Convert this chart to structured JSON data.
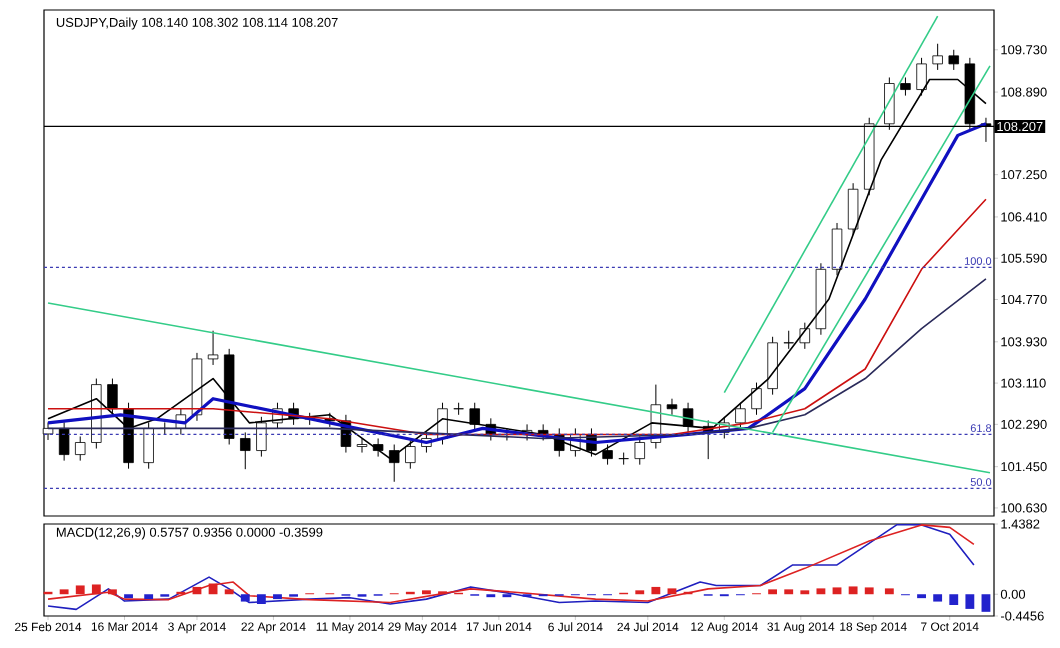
{
  "chart_data": [
    {
      "type": "candlestick",
      "title": "USDJPY,Daily 108.140 108.302 108.114 108.207",
      "x": [
        "2014-02-25",
        "2014-03-01",
        "2014-03-05",
        "2014-03-09",
        "2014-03-13",
        "2014-03-17",
        "2014-03-22",
        "2014-03-26",
        "2014-03-30",
        "2014-04-03",
        "2014-04-07",
        "2014-04-11",
        "2014-04-15",
        "2014-04-19",
        "2014-04-23",
        "2014-04-27",
        "2014-05-01",
        "2014-05-06",
        "2014-05-10",
        "2014-05-14",
        "2014-05-18",
        "2014-05-22",
        "2014-05-26",
        "2014-05-30",
        "2014-06-03",
        "2014-06-07",
        "2014-06-11",
        "2014-06-15",
        "2014-06-19",
        "2014-06-24",
        "2014-06-28",
        "2014-07-02",
        "2014-07-06",
        "2014-07-10",
        "2014-07-14",
        "2014-07-18",
        "2014-07-22",
        "2014-07-26",
        "2014-07-30",
        "2014-08-03",
        "2014-08-08",
        "2014-08-12",
        "2014-08-16",
        "2014-08-20",
        "2014-08-24",
        "2014-08-28",
        "2014-09-01",
        "2014-09-05",
        "2014-09-09",
        "2014-09-13",
        "2014-09-17",
        "2014-09-22",
        "2014-09-26",
        "2014-09-30",
        "2014-10-04",
        "2014-10-08",
        "2014-10-12",
        "2014-10-16"
      ],
      "ohlc": [
        [
          102.1,
          102.33,
          101.98,
          102.21
        ],
        [
          102.21,
          102.33,
          101.57,
          101.69
        ],
        [
          101.69,
          102.05,
          101.57,
          101.93
        ],
        [
          101.93,
          103.2,
          101.81,
          103.08
        ],
        [
          103.08,
          103.2,
          102.48,
          102.6
        ],
        [
          102.6,
          102.72,
          101.41,
          101.53
        ],
        [
          101.53,
          102.33,
          101.41,
          102.21
        ],
        [
          102.21,
          102.33,
          102.09,
          102.21
        ],
        [
          102.21,
          102.6,
          102.09,
          102.48
        ],
        [
          102.48,
          103.71,
          102.36,
          103.59
        ],
        [
          103.59,
          104.15,
          103.47,
          103.67
        ],
        [
          103.67,
          103.79,
          101.89,
          102.01
        ],
        [
          102.01,
          102.13,
          101.4,
          101.77
        ],
        [
          101.77,
          102.44,
          101.65,
          102.32
        ],
        [
          102.32,
          102.72,
          102.2,
          102.6
        ],
        [
          102.6,
          102.72,
          102.28,
          102.4
        ],
        [
          102.4,
          102.52,
          102.28,
          102.4
        ],
        [
          102.4,
          102.52,
          102.24,
          102.36
        ],
        [
          102.36,
          102.48,
          101.73,
          101.85
        ],
        [
          101.85,
          102.01,
          101.73,
          101.89
        ],
        [
          101.89,
          102.01,
          101.65,
          101.77
        ],
        [
          101.77,
          101.89,
          101.15,
          101.53
        ],
        [
          101.53,
          101.97,
          101.41,
          101.85
        ],
        [
          101.85,
          102.13,
          101.73,
          102.01
        ],
        [
          102.01,
          102.72,
          101.89,
          102.6
        ],
        [
          102.6,
          102.72,
          102.48,
          102.6
        ],
        [
          102.6,
          102.72,
          102.17,
          102.29
        ],
        [
          102.29,
          102.41,
          101.97,
          102.09
        ],
        [
          102.09,
          102.21,
          101.97,
          102.09
        ],
        [
          102.09,
          102.29,
          101.97,
          102.17
        ],
        [
          102.17,
          102.29,
          101.97,
          102.09
        ],
        [
          102.09,
          102.21,
          101.65,
          101.77
        ],
        [
          101.77,
          102.21,
          101.65,
          102.09
        ],
        [
          102.09,
          102.21,
          101.65,
          101.77
        ],
        [
          101.77,
          101.89,
          101.49,
          101.61
        ],
        [
          101.61,
          101.73,
          101.49,
          101.61
        ],
        [
          101.61,
          102.05,
          101.49,
          101.93
        ],
        [
          101.93,
          103.08,
          101.81,
          102.68
        ],
        [
          102.68,
          102.8,
          102.48,
          102.6
        ],
        [
          102.6,
          102.72,
          102.13,
          102.25
        ],
        [
          102.25,
          102.37,
          101.6,
          102.13
        ],
        [
          102.13,
          102.44,
          102.01,
          102.32
        ],
        [
          102.32,
          102.72,
          102.2,
          102.6
        ],
        [
          102.6,
          103.12,
          102.48,
          103.0
        ],
        [
          103.0,
          104.03,
          102.88,
          103.91
        ],
        [
          103.91,
          104.15,
          103.79,
          103.91
        ],
        [
          103.91,
          104.31,
          103.79,
          104.19
        ],
        [
          104.19,
          105.49,
          104.07,
          105.37
        ],
        [
          105.37,
          106.29,
          105.25,
          106.17
        ],
        [
          106.17,
          107.08,
          106.05,
          106.96
        ],
        [
          106.96,
          108.38,
          106.84,
          108.26
        ],
        [
          108.26,
          109.18,
          108.14,
          109.06
        ],
        [
          109.06,
          109.18,
          108.82,
          108.94
        ],
        [
          108.94,
          109.57,
          108.82,
          109.45
        ],
        [
          109.45,
          109.85,
          109.33,
          109.61
        ],
        [
          109.61,
          109.73,
          109.33,
          109.45
        ],
        [
          109.45,
          109.57,
          108.14,
          108.26
        ],
        [
          108.26,
          108.38,
          107.9,
          108.207
        ]
      ],
      "series": [
        {
          "type": "line",
          "color": "#000000",
          "x": [
            "2014-02-25",
            "2014-03-09",
            "2014-03-17",
            "2014-03-24",
            "2014-04-07",
            "2014-04-16",
            "2014-05-06",
            "2014-05-21",
            "2014-06-03",
            "2014-06-28",
            "2014-07-11",
            "2014-07-25",
            "2014-08-09",
            "2014-08-23",
            "2014-09-07",
            "2014-09-20",
            "2014-10-02",
            "2014-10-09",
            "2014-10-16"
          ],
          "values": [
            102.4,
            102.8,
            102.21,
            102.4,
            103.2,
            102.32,
            102.48,
            101.61,
            102.4,
            102.09,
            101.69,
            102.32,
            102.21,
            103.2,
            104.78,
            107.55,
            109.14,
            109.14,
            108.66
          ]
        },
        {
          "type": "line",
          "color": "#1010c0",
          "x": [
            "2014-02-25",
            "2014-03-15",
            "2014-03-31",
            "2014-04-07",
            "2014-05-06",
            "2014-05-30",
            "2014-06-13",
            "2014-07-11",
            "2014-08-03",
            "2014-08-18",
            "2014-09-01",
            "2014-09-16",
            "2014-09-30",
            "2014-10-09",
            "2014-10-16"
          ],
          "values": [
            102.32,
            102.48,
            102.32,
            102.8,
            102.32,
            101.93,
            102.21,
            101.93,
            102.09,
            102.21,
            103.0,
            104.78,
            106.76,
            108.03,
            108.26
          ]
        },
        {
          "type": "line",
          "color": "#cc1010",
          "x": [
            "2014-02-25",
            "2014-04-07",
            "2014-05-06",
            "2014-05-30",
            "2014-06-28",
            "2014-07-30",
            "2014-08-18",
            "2014-09-01",
            "2014-09-16",
            "2014-09-30",
            "2014-10-16"
          ],
          "values": [
            102.6,
            102.6,
            102.4,
            102.09,
            102.09,
            102.09,
            102.32,
            102.6,
            103.39,
            105.37,
            106.76
          ]
        },
        {
          "type": "line",
          "color": "#2a2a5a",
          "x": [
            "2014-02-25",
            "2014-03-24",
            "2014-05-06",
            "2014-06-28",
            "2014-08-03",
            "2014-08-18",
            "2014-09-01",
            "2014-09-16",
            "2014-09-30",
            "2014-10-16"
          ],
          "values": [
            102.21,
            102.21,
            102.21,
            102.01,
            102.09,
            102.21,
            102.48,
            103.2,
            104.19,
            105.18
          ]
        },
        {
          "type": "line",
          "color": "#33cc88",
          "x": [
            "2014-02-25",
            "2014-10-17"
          ],
          "values": [
            104.7,
            101.33
          ]
        },
        {
          "type": "line",
          "color": "#33cc88",
          "x": [
            "2014-08-12",
            "2014-10-04"
          ],
          "values": [
            102.92,
            110.4
          ]
        },
        {
          "type": "line",
          "color": "#33cc88",
          "x": [
            "2014-08-24",
            "2014-10-17"
          ],
          "values": [
            102.13,
            109.41
          ]
        }
      ],
      "xlim": [
        "2014-02-24",
        "2014-10-18"
      ],
      "ylim": [
        100.47,
        110.52
      ],
      "yticks": [
        {
          "value": 100.63,
          "label": "100.630"
        },
        {
          "value": 101.45,
          "label": "101.450"
        },
        {
          "value": 102.29,
          "label": "102.290"
        },
        {
          "value": 103.11,
          "label": "103.110"
        },
        {
          "value": 103.93,
          "label": "103.930"
        },
        {
          "value": 104.77,
          "label": "104.770"
        },
        {
          "value": 105.59,
          "label": "105.590"
        },
        {
          "value": 106.41,
          "label": "106.410"
        },
        {
          "value": 107.25,
          "label": "107.250"
        },
        {
          "value": 108.89,
          "label": "108.890"
        },
        {
          "value": 109.73,
          "label": "109.730"
        }
      ],
      "ref_lines": [
        {
          "axis": "y",
          "value": 108.207,
          "label": "108.207",
          "color": "#000000",
          "line_style": "solid"
        },
        {
          "axis": "y",
          "value": 105.41,
          "color": "#3b3bb3",
          "line_style": "dashed"
        },
        {
          "axis": "y",
          "value": 102.09,
          "color": "#3b3bb3",
          "line_style": "dashed"
        },
        {
          "axis": "y",
          "value": 101.02,
          "color": "#3b3bb3",
          "line_style": "dashed"
        }
      ],
      "annotations": [
        {
          "text": "100.0",
          "x": "2014-10-18",
          "y": 105.41
        },
        {
          "text": "61.8",
          "x": "2014-10-18",
          "y": 102.09
        },
        {
          "text": "50.0",
          "x": "2014-10-18",
          "y": 101.02
        }
      ],
      "tick_labels": "y"
    },
    {
      "type": "line",
      "title": "MACD(12,26,9) 0.5757 0.9356 0.0000 -0.3599",
      "series": [
        {
          "type": "bar",
          "x": [
            "2014-02-25",
            "2014-03-01",
            "2014-03-05",
            "2014-03-09",
            "2014-03-13",
            "2014-03-17",
            "2014-03-22",
            "2014-03-26",
            "2014-03-30",
            "2014-04-03",
            "2014-04-07",
            "2014-04-11",
            "2014-04-15",
            "2014-04-19",
            "2014-04-23",
            "2014-04-27",
            "2014-05-01",
            "2014-05-06",
            "2014-05-10",
            "2014-05-14",
            "2014-05-18",
            "2014-05-22",
            "2014-05-26",
            "2014-05-30",
            "2014-06-03",
            "2014-06-07",
            "2014-06-11",
            "2014-06-15",
            "2014-06-19",
            "2014-06-24",
            "2014-06-28",
            "2014-07-02",
            "2014-07-06",
            "2014-07-10",
            "2014-07-14",
            "2014-07-18",
            "2014-07-22",
            "2014-07-26",
            "2014-07-30",
            "2014-08-03",
            "2014-08-08",
            "2014-08-12",
            "2014-08-16",
            "2014-08-20",
            "2014-08-24",
            "2014-08-28",
            "2014-09-01",
            "2014-09-05",
            "2014-09-09",
            "2014-09-13",
            "2014-09-17",
            "2014-09-22",
            "2014-09-26",
            "2014-09-30",
            "2014-10-04",
            "2014-10-08",
            "2014-10-12",
            "2014-10-16"
          ],
          "values": [
            0.05,
            0.1,
            0.18,
            0.2,
            0.1,
            -0.08,
            -0.1,
            -0.05,
            0.05,
            0.15,
            0.22,
            0.1,
            -0.15,
            -0.2,
            -0.1,
            -0.05,
            0.02,
            0.02,
            -0.03,
            -0.05,
            -0.03,
            0.02,
            0.05,
            0.08,
            0.06,
            0.03,
            -0.03,
            -0.06,
            -0.06,
            -0.05,
            -0.04,
            -0.03,
            -0.02,
            -0.02,
            -0.02,
            0.03,
            0.08,
            0.15,
            0.12,
            0.05,
            -0.03,
            -0.04,
            -0.02,
            0.02,
            0.1,
            0.1,
            0.08,
            0.12,
            0.14,
            0.16,
            0.14,
            0.12,
            -0.02,
            -0.08,
            -0.15,
            -0.22,
            -0.3,
            -0.36
          ],
          "colors": [
            "#dd2222",
            "#dd2222",
            "#dd2222",
            "#dd2222",
            "#dd2222",
            "#2222cc",
            "#2222cc",
            "#2222cc",
            "#dd2222",
            "#dd2222",
            "#dd2222",
            "#dd2222",
            "#2222cc",
            "#2222cc",
            "#2222cc",
            "#2222cc",
            "#dd2222",
            "#dd2222",
            "#2222cc",
            "#2222cc",
            "#2222cc",
            "#dd2222",
            "#dd2222",
            "#dd2222",
            "#dd2222",
            "#dd2222",
            "#2222cc",
            "#2222cc",
            "#2222cc",
            "#2222cc",
            "#2222cc",
            "#2222cc",
            "#2222cc",
            "#2222cc",
            "#2222cc",
            "#dd2222",
            "#dd2222",
            "#dd2222",
            "#dd2222",
            "#dd2222",
            "#2222cc",
            "#2222cc",
            "#2222cc",
            "#dd2222",
            "#dd2222",
            "#dd2222",
            "#dd2222",
            "#dd2222",
            "#dd2222",
            "#dd2222",
            "#dd2222",
            "#dd2222",
            "#2222cc",
            "#2222cc",
            "#2222cc",
            "#2222cc",
            "#2222cc",
            "#2222cc"
          ]
        },
        {
          "type": "line",
          "color": "#1f1fbf",
          "x": [
            "2014-02-25",
            "2014-03-04",
            "2014-03-12",
            "2014-03-16",
            "2014-03-27",
            "2014-04-06",
            "2014-04-11",
            "2014-04-16",
            "2014-05-01",
            "2014-05-11",
            "2014-05-21",
            "2014-05-30",
            "2014-06-10",
            "2014-06-21",
            "2014-07-02",
            "2014-07-11",
            "2014-07-24",
            "2014-08-06",
            "2014-08-10",
            "2014-08-21",
            "2014-08-29",
            "2014-09-09",
            "2014-09-24",
            "2014-09-30",
            "2014-10-07",
            "2014-10-13"
          ],
          "values": [
            -0.24,
            -0.31,
            0.11,
            -0.14,
            -0.1,
            0.35,
            0.11,
            -0.17,
            -0.1,
            -0.07,
            -0.2,
            -0.1,
            0.15,
            0,
            -0.17,
            -0.14,
            -0.17,
            0.25,
            0.18,
            0.18,
            0.6,
            0.6,
            1.43,
            1.42,
            1.23,
            0.6
          ]
        },
        {
          "type": "line",
          "color": "#dd2222",
          "x": [
            "2014-02-25",
            "2014-03-12",
            "2014-03-16",
            "2014-03-27",
            "2014-04-06",
            "2014-04-12",
            "2014-04-16",
            "2014-05-01",
            "2014-05-21",
            "2014-06-10",
            "2014-06-21",
            "2014-07-11",
            "2014-07-24",
            "2014-08-08",
            "2014-08-21",
            "2014-09-01",
            "2014-09-17",
            "2014-09-30",
            "2014-10-07",
            "2014-10-13"
          ],
          "values": [
            -0.1,
            0.04,
            -0.1,
            -0.11,
            0.18,
            0.25,
            -0.03,
            -0.11,
            -0.17,
            0.11,
            0.04,
            -0.1,
            -0.14,
            0.11,
            0.18,
            0.53,
            1.09,
            1.42,
            1.37,
            1.02
          ]
        }
      ],
      "xlim": [
        "2014-02-24",
        "2014-10-18"
      ],
      "ylim": [
        -0.4456,
        1.4382
      ],
      "yticks": [
        1.4382,
        {
          "value": 0,
          "label": "0.00"
        },
        -0.4456
      ],
      "xticks": [
        {
          "value": "2014-02-25",
          "label": "25 Feb 2014"
        },
        {
          "value": "2014-03-16",
          "label": "16 Mar 2014"
        },
        {
          "value": "2014-04-03",
          "label": "3 Apr 2014"
        },
        {
          "value": "2014-04-22",
          "label": "22 Apr 2014"
        },
        {
          "value": "2014-05-11",
          "label": "11 May 2014"
        },
        {
          "value": "2014-05-29",
          "label": "29 May 2014"
        },
        {
          "value": "2014-06-17",
          "label": "17 Jun 2014"
        },
        {
          "value": "2014-07-06",
          "label": "6 Jul 2014"
        },
        {
          "value": "2014-07-24",
          "label": "24 Jul 2014"
        },
        {
          "value": "2014-08-12",
          "label": "12 Aug 2014"
        },
        {
          "value": "2014-08-31",
          "label": "31 Aug 2014"
        },
        {
          "value": "2014-09-18",
          "label": "18 Sep 2014"
        },
        {
          "value": "2014-10-07",
          "label": "7 Oct 2014"
        }
      ]
    }
  ]
}
